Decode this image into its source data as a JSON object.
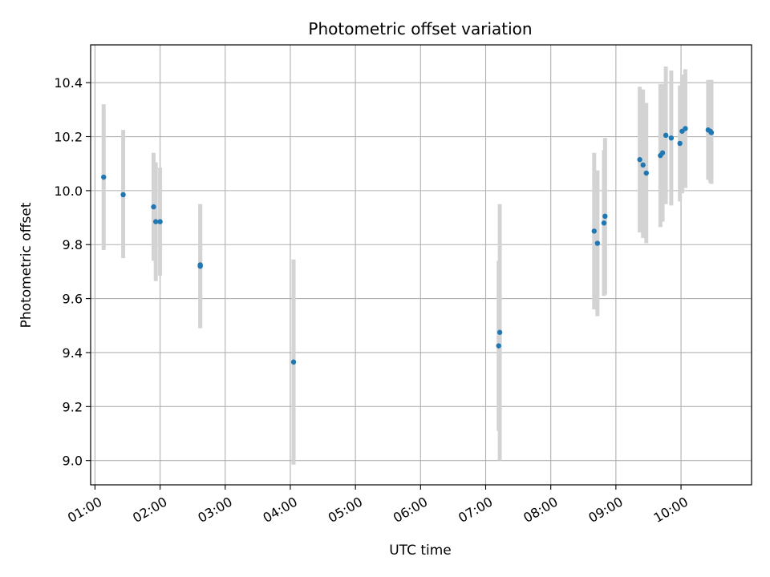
{
  "chart_data": {
    "type": "scatter",
    "title": "Photometric offset variation",
    "xlabel": "UTC time",
    "ylabel": "Photometric offset",
    "x_ticks": [
      "01:00",
      "02:00",
      "03:00",
      "04:00",
      "05:00",
      "06:00",
      "07:00",
      "08:00",
      "09:00",
      "10:00"
    ],
    "y_ticks": [
      "9.0",
      "9.2",
      "9.4",
      "9.6",
      "9.8",
      "10.0",
      "10.2",
      "10.4"
    ],
    "xlim": [
      "00:56",
      "11:05"
    ],
    "ylim": [
      8.91,
      10.54
    ],
    "grid": true,
    "marker_color": "#1f77b4",
    "errorbar_color": "#d3d3d3",
    "points": [
      {
        "x": "01:08",
        "y": 10.05,
        "low": 9.78,
        "high": 10.32
      },
      {
        "x": "01:26",
        "y": 9.985,
        "low": 9.75,
        "high": 10.225
      },
      {
        "x": "01:54",
        "y": 9.94,
        "low": 9.74,
        "high": 10.14
      },
      {
        "x": "01:56",
        "y": 9.885,
        "low": 9.665,
        "high": 10.105
      },
      {
        "x": "02:00",
        "y": 9.885,
        "low": 9.685,
        "high": 10.085
      },
      {
        "x": "02:37",
        "y": 9.72,
        "low": 9.49,
        "high": 9.95
      },
      {
        "x": "02:37",
        "y": 9.725,
        "low": 9.5,
        "high": 9.95
      },
      {
        "x": "04:03",
        "y": 9.365,
        "low": 8.985,
        "high": 9.745
      },
      {
        "x": "07:12",
        "y": 9.425,
        "low": 9.11,
        "high": 9.74
      },
      {
        "x": "07:13",
        "y": 9.475,
        "low": 9.0,
        "high": 9.95
      },
      {
        "x": "08:40",
        "y": 9.85,
        "low": 9.56,
        "high": 10.14
      },
      {
        "x": "08:43",
        "y": 9.805,
        "low": 9.535,
        "high": 10.075
      },
      {
        "x": "08:49",
        "y": 9.88,
        "low": 9.61,
        "high": 10.15
      },
      {
        "x": "08:50",
        "y": 9.905,
        "low": 9.615,
        "high": 10.195
      },
      {
        "x": "09:22",
        "y": 10.115,
        "low": 9.845,
        "high": 10.385
      },
      {
        "x": "09:25",
        "y": 10.095,
        "low": 9.825,
        "high": 10.375
      },
      {
        "x": "09:28",
        "y": 10.065,
        "low": 9.805,
        "high": 10.325
      },
      {
        "x": "09:41",
        "y": 10.13,
        "low": 9.865,
        "high": 10.395
      },
      {
        "x": "09:43",
        "y": 10.14,
        "low": 9.885,
        "high": 10.395
      },
      {
        "x": "09:46",
        "y": 10.205,
        "low": 9.95,
        "high": 10.46
      },
      {
        "x": "09:51",
        "y": 10.195,
        "low": 9.945,
        "high": 10.445
      },
      {
        "x": "09:59",
        "y": 10.175,
        "low": 9.96,
        "high": 10.39
      },
      {
        "x": "10:01",
        "y": 10.22,
        "low": 9.99,
        "high": 10.43
      },
      {
        "x": "10:04",
        "y": 10.23,
        "low": 10.01,
        "high": 10.45
      },
      {
        "x": "10:25",
        "y": 10.225,
        "low": 10.04,
        "high": 10.41
      },
      {
        "x": "10:27",
        "y": 10.22,
        "low": 10.03,
        "high": 10.41
      },
      {
        "x": "10:28",
        "y": 10.215,
        "low": 10.025,
        "high": 10.41
      }
    ]
  }
}
